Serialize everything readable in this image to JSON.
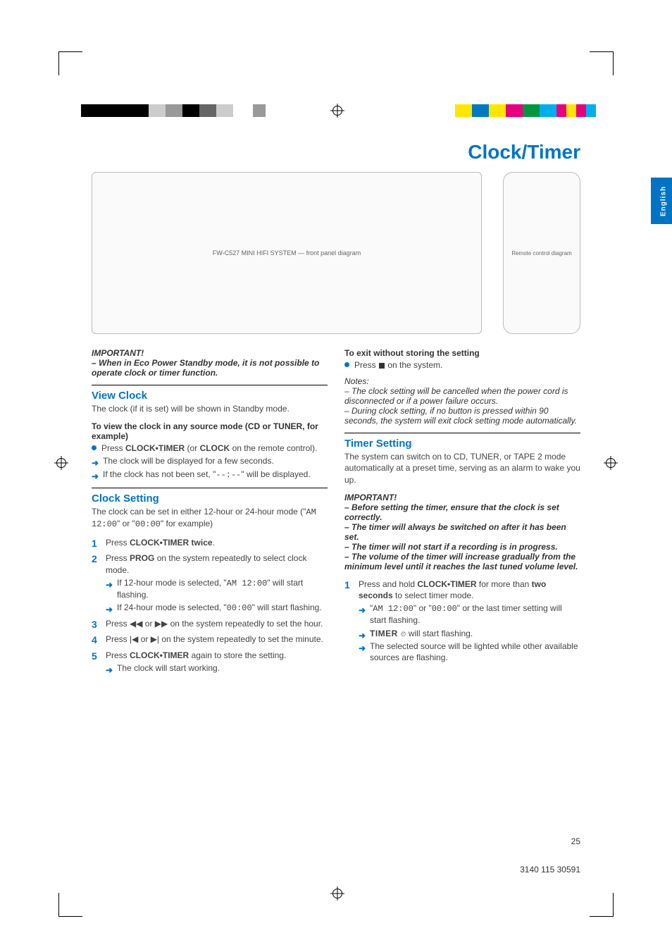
{
  "doc_title": "Clock/Timer",
  "side_tab": "English",
  "page_number": "25",
  "doc_number": "3140 115 30591",
  "figures": {
    "device_placeholder": "FW-C527 MINI HIFI SYSTEM — front panel diagram",
    "remote_placeholder": "Remote control diagram"
  },
  "colorbars": {
    "left": [
      "#000000",
      "#000000",
      "#000000",
      "#000000",
      "#cccccc",
      "#999999",
      "#000000",
      "#666666",
      "#cccccc",
      "#ffffff",
      "#ffffff",
      "#999999"
    ],
    "left_widths": [
      24,
      24,
      24,
      24,
      24,
      24,
      24,
      24,
      24,
      14,
      14,
      18
    ],
    "right": [
      "#ffe600",
      "#0079c0",
      "#ffe600",
      "#e6007e",
      "#009640",
      "#00aeef",
      "#e6007e",
      "#ffe600",
      "#e6007e",
      "#00aeef"
    ],
    "right_widths": [
      24,
      24,
      24,
      24,
      24,
      24,
      14,
      14,
      14,
      14
    ]
  },
  "left_col": {
    "important_hd": "IMPORTANT!",
    "important_body": "–  When in Eco Power Standby mode, it is not possible to operate clock or timer function.",
    "view_clock_hd": "View Clock",
    "view_clock_body": "The clock (if it is set) will be shown in Standby mode.",
    "view_clock_sub": "To view the clock in any source mode (CD or TUNER, for example)",
    "view_clock_bullet_pre": "Press ",
    "view_clock_bullet_b1": "CLOCK•TIMER",
    "view_clock_bullet_mid": " (or ",
    "view_clock_bullet_b2": "CLOCK",
    "view_clock_bullet_post": " on the remote control).",
    "view_clock_ar1": "The clock will be displayed for a few seconds.",
    "view_clock_ar2a": "If the clock has not been set, \"",
    "view_clock_ar2seg": "--:--",
    "view_clock_ar2b": "\" will be displayed.",
    "clock_set_hd": "Clock Setting",
    "clock_set_body_a": "The clock can be set in either 12-hour or 24-hour mode (\"",
    "clock_set_body_seg1": "AM 12:00",
    "clock_set_body_b": "\" or \"",
    "clock_set_body_seg2": "00:00",
    "clock_set_body_c": "\" for example)",
    "steps": [
      {
        "pre": "Press ",
        "b": "CLOCK•TIMER twice",
        "post": "."
      },
      {
        "pre": "Press ",
        "b": "PROG",
        "post": " on the system repeatedly to select clock mode.",
        "arrows": [
          {
            "a": "If 12-hour mode is selected, \"",
            "seg": "AM 12:00",
            "b": "\" will start flashing."
          },
          {
            "a": "If 24-hour mode is selected, \"",
            "seg": "00:00",
            "b": "\" will start flashing."
          }
        ]
      },
      {
        "pre": "Press ◀◀ or ▶▶ on the system repeatedly to set the hour."
      },
      {
        "pre": "Press |◀ or ▶| on the system repeatedly to set the minute."
      },
      {
        "pre": "Press ",
        "b": "CLOCK•TIMER",
        "post": " again to store the setting.",
        "arrows": [
          {
            "a": "The clock will start working."
          }
        ]
      }
    ]
  },
  "right_col": {
    "exit_hd": "To exit without storing the setting",
    "exit_body_pre": "Press ",
    "exit_body_post": " on the system.",
    "notes_hd": "Notes:",
    "note1": "–  The clock setting will be cancelled when the power cord is disconnected or if a power failure occurs.",
    "note2": "–  During clock setting, if no button is pressed within 90 seconds, the system will exit clock setting mode automatically.",
    "timer_hd": "Timer Setting",
    "timer_body": "The system can switch on to CD, TUNER, or TAPE 2 mode automatically at a preset time, serving as an alarm to wake you up.",
    "timer_imp_hd": "IMPORTANT!",
    "timer_imp1": "–  Before setting the timer, ensure that the clock is set correctly.",
    "timer_imp2": "–  The timer will always be switched on after it has been set.",
    "timer_imp3": "–  The timer will not start if a recording is in progress.",
    "timer_imp4": "–  The volume of the timer will increase gradually from the minimum level until it reaches the last tuned volume level.",
    "timer_step1_pre": "Press and hold ",
    "timer_step1_b1": "CLOCK•TIMER",
    "timer_step1_mid": " for more than ",
    "timer_step1_b2": "two seconds",
    "timer_step1_post": " to select timer mode.",
    "timer_ar1_a": "\"",
    "timer_ar1_seg1": "AM 12:00",
    "timer_ar1_b": "\" or \"",
    "timer_ar1_seg2": "00:00",
    "timer_ar1_c": "\" or the last timer setting will start flashing.",
    "timer_ar2_a": "TIMER ",
    "timer_ar2_b": " will start flashing.",
    "timer_ar3": "The selected source will be lighted while other available sources are flashing."
  }
}
